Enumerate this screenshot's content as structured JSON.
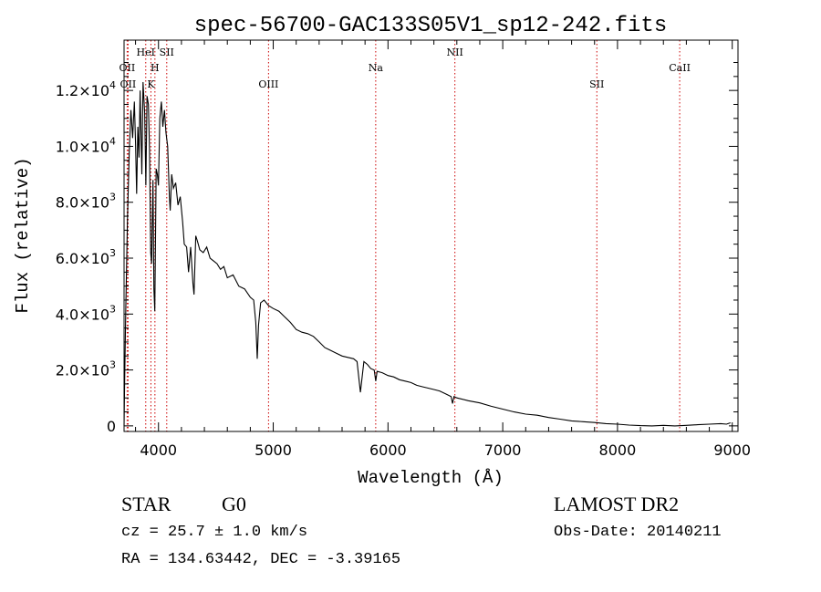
{
  "chart_data": {
    "type": "line",
    "title": "spec-56700-GAC133S05V1_sp12-242.fits",
    "xlabel": "Wavelength (Å)",
    "ylabel": "Flux (relative)",
    "xlim": [
      3700,
      9050
    ],
    "ylim": [
      -200,
      13800
    ],
    "x_ticks": [
      {
        "value": 4000,
        "label": "4000"
      },
      {
        "value": 5000,
        "label": "5000"
      },
      {
        "value": 6000,
        "label": "6000"
      },
      {
        "value": 7000,
        "label": "7000"
      },
      {
        "value": 8000,
        "label": "8000"
      },
      {
        "value": 9000,
        "label": "9000"
      }
    ],
    "y_ticks": [
      {
        "value": 0,
        "mant": "0",
        "exp": ""
      },
      {
        "value": 2000,
        "mant": "2.0×10",
        "exp": "3"
      },
      {
        "value": 4000,
        "mant": "4.0×10",
        "exp": "3"
      },
      {
        "value": 6000,
        "mant": "6.0×10",
        "exp": "3"
      },
      {
        "value": 8000,
        "mant": "8.0×10",
        "exp": "3"
      },
      {
        "value": 10000,
        "mant": "1.0×10",
        "exp": "4"
      },
      {
        "value": 12000,
        "mant": "1.2×10",
        "exp": "4"
      }
    ],
    "line_color": "#000000",
    "marker_color": "#cc0000",
    "grid": false,
    "spectrum": [
      [
        3700,
        0
      ],
      [
        3705,
        1500
      ],
      [
        3715,
        4200
      ],
      [
        3730,
        7500
      ],
      [
        3745,
        9800
      ],
      [
        3760,
        11300
      ],
      [
        3775,
        10300
      ],
      [
        3790,
        11600
      ],
      [
        3800,
        10100
      ],
      [
        3810,
        8300
      ],
      [
        3820,
        10700
      ],
      [
        3830,
        9600
      ],
      [
        3840,
        12000
      ],
      [
        3855,
        9000
      ],
      [
        3865,
        12300
      ],
      [
        3880,
        11200
      ],
      [
        3890,
        8600
      ],
      [
        3900,
        11800
      ],
      [
        3912,
        11500
      ],
      [
        3922,
        9900
      ],
      [
        3932,
        6200
      ],
      [
        3940,
        5800
      ],
      [
        3952,
        8800
      ],
      [
        3960,
        4900
      ],
      [
        3968,
        4100
      ],
      [
        3980,
        9200
      ],
      [
        3990,
        9000
      ],
      [
        4000,
        8600
      ],
      [
        4012,
        11000
      ],
      [
        4025,
        11600
      ],
      [
        4038,
        10700
      ],
      [
        4052,
        11300
      ],
      [
        4065,
        10500
      ],
      [
        4080,
        10000
      ],
      [
        4095,
        8200
      ],
      [
        4102,
        7700
      ],
      [
        4115,
        9000
      ],
      [
        4130,
        8500
      ],
      [
        4150,
        8700
      ],
      [
        4170,
        7900
      ],
      [
        4190,
        8200
      ],
      [
        4210,
        7300
      ],
      [
        4225,
        6500
      ],
      [
        4245,
        6400
      ],
      [
        4262,
        5500
      ],
      [
        4280,
        6400
      ],
      [
        4300,
        5100
      ],
      [
        4310,
        4700
      ],
      [
        4325,
        6800
      ],
      [
        4340,
        6600
      ],
      [
        4360,
        6300
      ],
      [
        4390,
        6200
      ],
      [
        4420,
        6400
      ],
      [
        4450,
        6000
      ],
      [
        4480,
        5900
      ],
      [
        4510,
        5800
      ],
      [
        4540,
        5600
      ],
      [
        4570,
        5700
      ],
      [
        4600,
        5300
      ],
      [
        4650,
        5400
      ],
      [
        4700,
        5000
      ],
      [
        4750,
        4900
      ],
      [
        4800,
        4600
      ],
      [
        4830,
        4500
      ],
      [
        4848,
        3700
      ],
      [
        4861,
        2400
      ],
      [
        4872,
        3600
      ],
      [
        4890,
        4400
      ],
      [
        4920,
        4500
      ],
      [
        4960,
        4300
      ],
      [
        5000,
        4200
      ],
      [
        5050,
        4100
      ],
      [
        5100,
        3900
      ],
      [
        5150,
        3700
      ],
      [
        5200,
        3450
      ],
      [
        5250,
        3350
      ],
      [
        5300,
        3300
      ],
      [
        5350,
        3200
      ],
      [
        5400,
        3000
      ],
      [
        5450,
        2800
      ],
      [
        5500,
        2700
      ],
      [
        5550,
        2600
      ],
      [
        5600,
        2500
      ],
      [
        5650,
        2450
      ],
      [
        5700,
        2400
      ],
      [
        5730,
        2300
      ],
      [
        5760,
        1200
      ],
      [
        5790,
        2300
      ],
      [
        5820,
        2200
      ],
      [
        5850,
        2050
      ],
      [
        5880,
        2000
      ],
      [
        5893,
        1600
      ],
      [
        5905,
        1950
      ],
      [
        5950,
        1900
      ],
      [
        6000,
        1800
      ],
      [
        6050,
        1750
      ],
      [
        6100,
        1650
      ],
      [
        6150,
        1600
      ],
      [
        6200,
        1550
      ],
      [
        6250,
        1450
      ],
      [
        6300,
        1400
      ],
      [
        6350,
        1350
      ],
      [
        6400,
        1300
      ],
      [
        6450,
        1250
      ],
      [
        6500,
        1150
      ],
      [
        6550,
        1050
      ],
      [
        6563,
        800
      ],
      [
        6575,
        1050
      ],
      [
        6600,
        1000
      ],
      [
        6700,
        900
      ],
      [
        6800,
        820
      ],
      [
        6900,
        700
      ],
      [
        7000,
        600
      ],
      [
        7100,
        500
      ],
      [
        7200,
        420
      ],
      [
        7300,
        380
      ],
      [
        7400,
        300
      ],
      [
        7500,
        240
      ],
      [
        7600,
        180
      ],
      [
        7700,
        150
      ],
      [
        7800,
        120
      ],
      [
        7900,
        80
      ],
      [
        8000,
        60
      ],
      [
        8100,
        30
      ],
      [
        8200,
        10
      ],
      [
        8300,
        0
      ],
      [
        8400,
        20
      ],
      [
        8500,
        0
      ],
      [
        8600,
        20
      ],
      [
        8700,
        40
      ],
      [
        8800,
        60
      ],
      [
        8900,
        80
      ],
      [
        8950,
        60
      ],
      [
        8985,
        110
      ]
    ],
    "line_markers": [
      {
        "x": 3727,
        "label": "OII",
        "row": 2
      },
      {
        "x": 3735,
        "label": "OII",
        "row": 3
      },
      {
        "x": 3889,
        "label": "HeI",
        "row": 1
      },
      {
        "x": 3934,
        "label": "K",
        "row": 3
      },
      {
        "x": 3969,
        "label": "H",
        "row": 2
      },
      {
        "x": 4072,
        "label": "SII",
        "row": 1
      },
      {
        "x": 4959,
        "label": "OIII",
        "row": 3
      },
      {
        "x": 5893,
        "label": "Na",
        "row": 2
      },
      {
        "x": 6583,
        "label": "NII",
        "row": 1
      },
      {
        "x": 7820,
        "label": "SII",
        "row": 3
      },
      {
        "x": 8542,
        "label": "CaII",
        "row": 2
      }
    ]
  },
  "info": {
    "class_label": "STAR",
    "subclass": "G0",
    "redshift": "cz = 25.7 ± 1.0 km/s",
    "coords": "RA = 134.63442, DEC =  -3.39165",
    "survey": "LAMOST DR2",
    "obs_date": "Obs-Date: 20140211"
  }
}
